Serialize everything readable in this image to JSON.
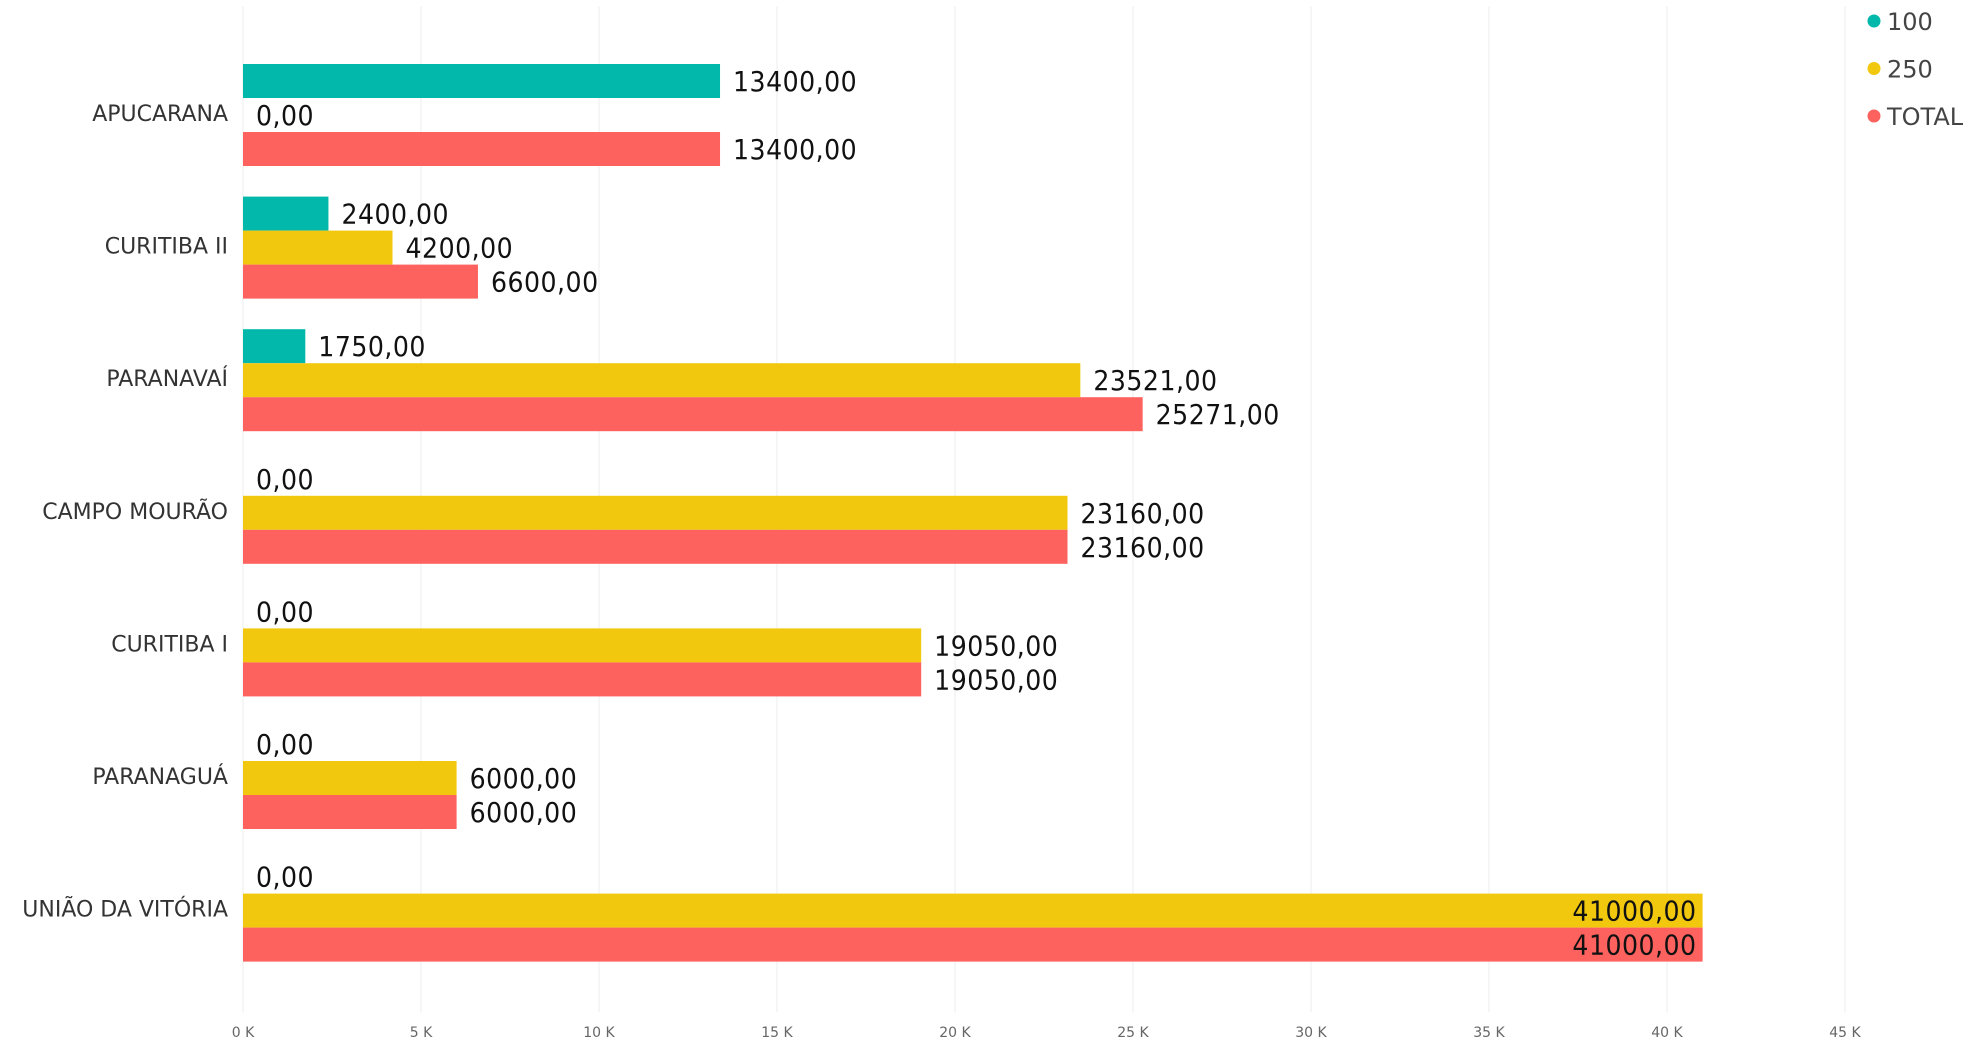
{
  "chart_data": {
    "type": "bar",
    "orientation": "horizontal",
    "categories": [
      "APUCARANA",
      "CURITIBA II",
      "PARANAVAÍ",
      "CAMPO MOURÃO",
      "CURITIBA I",
      "PARANAGUÁ",
      "UNIÃO DA VITÓRIA"
    ],
    "series": [
      {
        "name": "100",
        "color": "#01B8AA",
        "values": [
          13400,
          2400,
          1750,
          0,
          0,
          0,
          0
        ],
        "value_labels": [
          "13400,00",
          "2400,00",
          "1750,00",
          "0,00",
          "0,00",
          "0,00",
          "0,00"
        ]
      },
      {
        "name": "250",
        "color": "#F2C80F",
        "values": [
          0,
          4200,
          23521,
          23160,
          19050,
          6000,
          41000
        ],
        "value_labels": [
          "0,00",
          "4200,00",
          "23521,00",
          "23160,00",
          "19050,00",
          "6000,00",
          "41000,00"
        ]
      },
      {
        "name": "TOTAL",
        "color": "#FD625E",
        "values": [
          13400,
          6600,
          25271,
          23160,
          19050,
          6000,
          41000
        ],
        "value_labels": [
          "13400,00",
          "6600,00",
          "25271,00",
          "23160,00",
          "19050,00",
          "6000,00",
          "41000,00"
        ]
      }
    ],
    "xlim": [
      0,
      45000
    ],
    "xticks": [
      {
        "value": 0,
        "label": "0 K"
      },
      {
        "value": 5000,
        "label": "5 K"
      },
      {
        "value": 10000,
        "label": "10 K"
      },
      {
        "value": 15000,
        "label": "15 K"
      },
      {
        "value": 20000,
        "label": "20 K"
      },
      {
        "value": 25000,
        "label": "25 K"
      },
      {
        "value": 30000,
        "label": "30 K"
      },
      {
        "value": 35000,
        "label": "35 K"
      },
      {
        "value": 40000,
        "label": "40 K"
      },
      {
        "value": 45000,
        "label": "45 K"
      }
    ],
    "grid": true,
    "legend": "top-right"
  }
}
